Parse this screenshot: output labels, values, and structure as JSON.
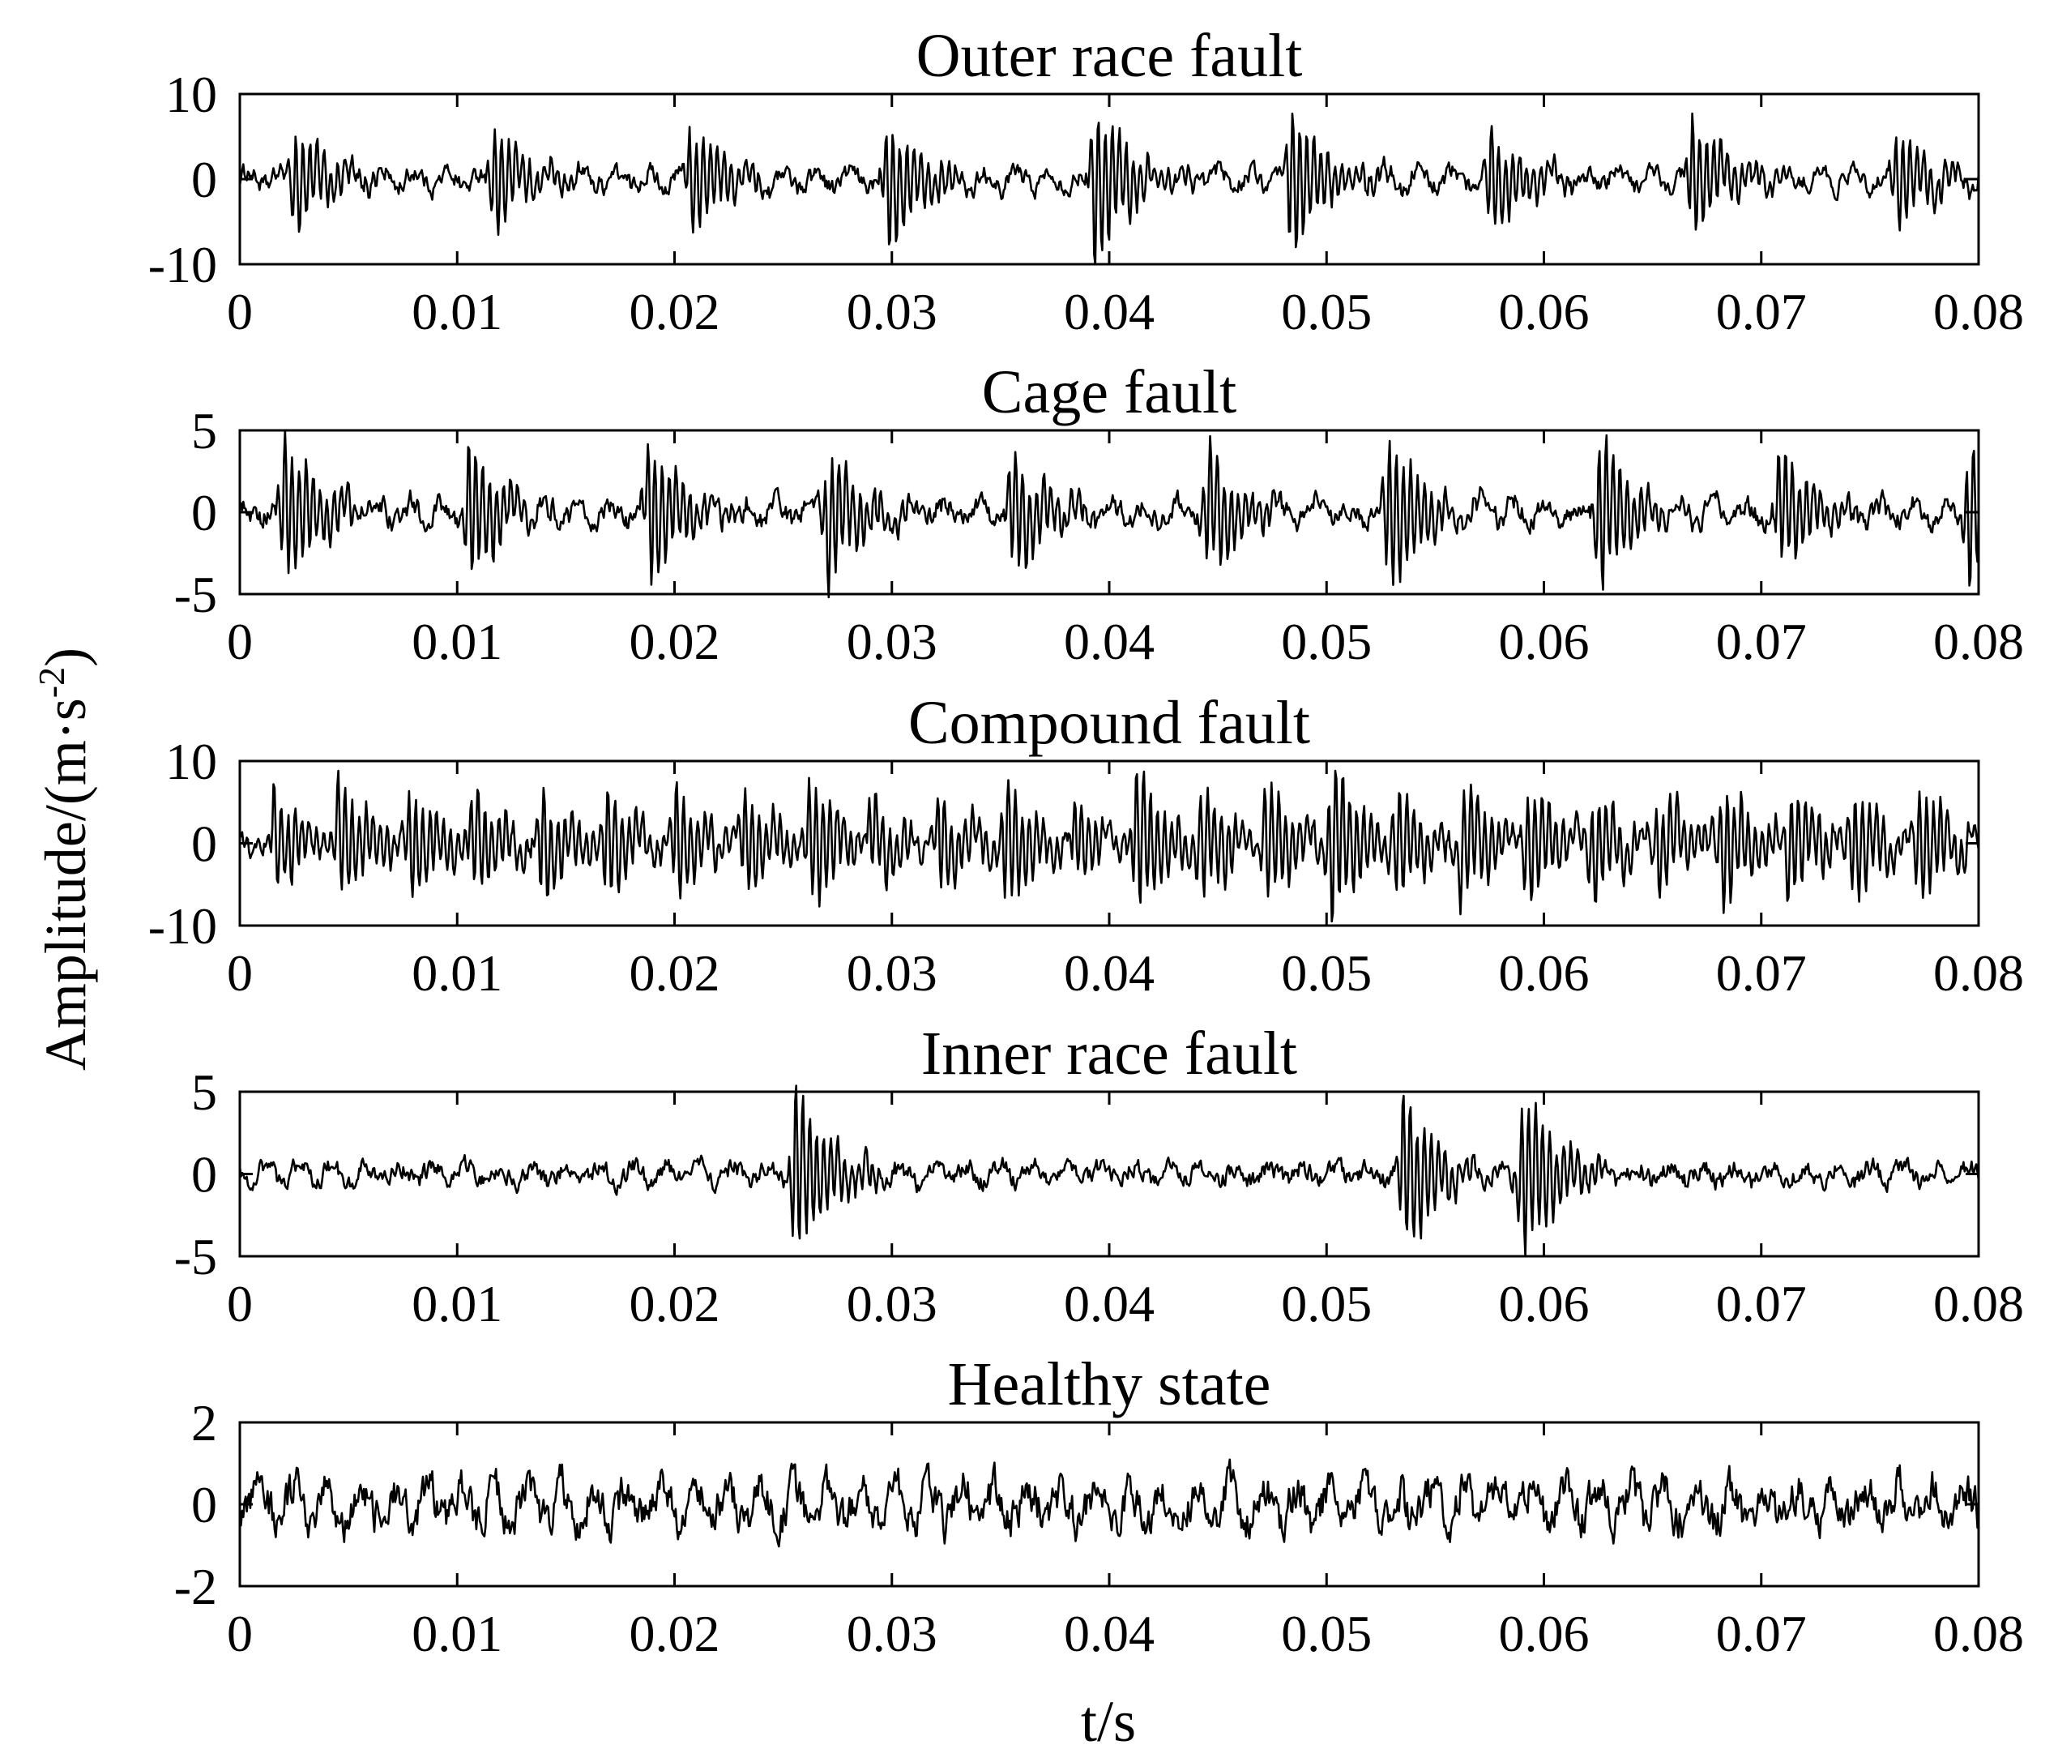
{
  "chart_data": [
    {
      "type": "line",
      "title": "Outer race fault",
      "xlim": [
        0,
        0.08
      ],
      "ylim": [
        -10,
        10
      ],
      "xticks": [
        "0",
        "0.01",
        "0.02",
        "0.03",
        "0.04",
        "0.05",
        "0.06",
        "0.07",
        "0.08"
      ],
      "yticks": [
        "10",
        "0",
        "-10"
      ],
      "signal": {
        "shape": "impulsive vibration: decaying bursts at fault period plus random noise",
        "bursts_t": [
          0.0025,
          0.0117,
          0.0207,
          0.0298,
          0.0393,
          0.0483,
          0.0575,
          0.0668,
          0.0762
        ],
        "burst_amplitude": [
          6.5,
          6.5,
          6.5,
          8.0,
          10.0,
          9.0,
          6.5,
          7.0,
          6.0
        ],
        "noise_amplitude": 1.5,
        "min": -10,
        "max": 10
      }
    },
    {
      "type": "line",
      "title": "Cage fault",
      "xlim": [
        0,
        0.08
      ],
      "ylim": [
        -5,
        5
      ],
      "xticks": [
        "0",
        "0.01",
        "0.02",
        "0.03",
        "0.04",
        "0.05",
        "0.06",
        "0.07",
        "0.08"
      ],
      "yticks": [
        "5",
        "0",
        "-5"
      ],
      "signal": {
        "shape": "impulsive vibration: decaying bursts at fault period plus random noise",
        "bursts_t": [
          0.002,
          0.0105,
          0.0188,
          0.027,
          0.0355,
          0.0445,
          0.0528,
          0.0625,
          0.0708,
          0.0795
        ],
        "burst_amplitude": [
          5.0,
          4.5,
          4.5,
          4.2,
          4.0,
          4.0,
          5.0,
          5.0,
          4.0,
          4.8
        ],
        "noise_amplitude": 0.9,
        "min": -5.5,
        "max": 5
      }
    },
    {
      "type": "line",
      "title": "Compound fault",
      "xlim": [
        0,
        0.08
      ],
      "ylim": [
        -10,
        10
      ],
      "xticks": [
        "0",
        "0.01",
        "0.02",
        "0.03",
        "0.04",
        "0.05",
        "0.06",
        "0.07",
        "0.08"
      ],
      "yticks": [
        "10",
        "0",
        "-10"
      ],
      "signal": {
        "shape": "dense periodic bursts (combined fault frequencies) plus random noise",
        "bursts_t": [
          0.0015,
          0.0045,
          0.0078,
          0.0107,
          0.0138,
          0.0168,
          0.02,
          0.0232,
          0.0262,
          0.029,
          0.0322,
          0.0352,
          0.0383,
          0.0412,
          0.0442,
          0.0472,
          0.0502,
          0.0532,
          0.0562,
          0.0592,
          0.0622,
          0.0652,
          0.0682,
          0.0712,
          0.0742,
          0.0772
        ],
        "burst_amplitude": [
          6,
          7,
          6,
          6,
          8,
          6,
          7,
          6,
          7,
          7,
          6,
          7,
          6,
          9,
          6,
          7,
          10,
          6,
          7,
          7,
          6,
          6,
          7,
          6,
          6,
          7
        ],
        "noise_amplitude": 1.8,
        "min": -10,
        "max": 10
      }
    },
    {
      "type": "line",
      "title": "Inner race fault",
      "xlim": [
        0,
        0.08
      ],
      "ylim": [
        -5,
        5
      ],
      "xticks": [
        "0",
        "0.01",
        "0.02",
        "0.03",
        "0.04",
        "0.05",
        "0.06",
        "0.07",
        "0.08"
      ],
      "yticks": [
        "5",
        "0",
        "-5"
      ],
      "signal": {
        "shape": "low-level oscillation with strong bursts near fault impacts",
        "bursts_t": [
          0.0255,
          0.0535,
          0.059
        ],
        "burst_amplitude": [
          5.5,
          5.0,
          5.0
        ],
        "noise_amplitude": 0.8,
        "min": -5,
        "max": 5.5
      }
    },
    {
      "type": "line",
      "title": "Healthy state",
      "xlim": [
        0,
        0.08
      ],
      "ylim": [
        -2,
        2
      ],
      "xticks": [
        "0",
        "0.01",
        "0.02",
        "0.03",
        "0.04",
        "0.05",
        "0.06",
        "0.07",
        "0.08"
      ],
      "yticks": [
        "2",
        "0",
        "-2"
      ],
      "signal": {
        "shape": "broadband random vibration, no periodic impacts",
        "bursts_t": [],
        "burst_amplitude": [],
        "noise_amplitude": 0.7,
        "min": -2,
        "max": 2
      }
    }
  ],
  "ylabel": {
    "main": "Amplitude/(m·s",
    "sup": "-2",
    "close": ")"
  },
  "xlabel": "t/s",
  "line_color": "#000000"
}
